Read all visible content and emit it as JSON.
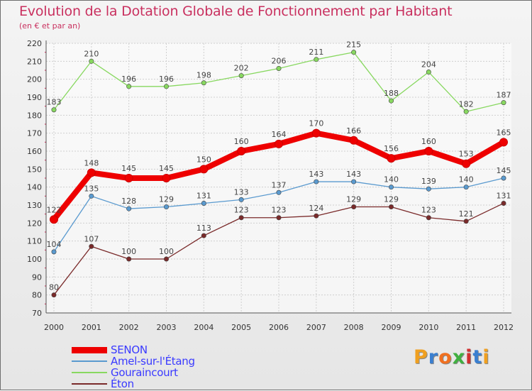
{
  "title": "Evolution de la Dotation Globale de Fonctionnement par Habitant",
  "subtitle": "(en € et par an)",
  "chart_data": {
    "type": "line",
    "title": "Evolution de la Dotation Globale de Fonctionnement par Habitant",
    "subtitle": "(en € et par an)",
    "xlabel": "",
    "ylabel": "",
    "ylim": [
      70,
      220
    ],
    "yticks": [
      70,
      80,
      90,
      100,
      110,
      120,
      130,
      140,
      150,
      160,
      170,
      180,
      190,
      200,
      210,
      220
    ],
    "grid": true,
    "legend_position": "bottom-left",
    "categories": [
      "2000",
      "2001",
      "2002",
      "2003",
      "2004",
      "2005",
      "2006",
      "2007",
      "2008",
      "2009",
      "2010",
      "2011",
      "2012"
    ],
    "series": [
      {
        "name": "Gouraincourt",
        "color": "#88d860",
        "values": [
          183,
          210,
          196,
          196,
          198,
          202,
          206,
          211,
          215,
          188,
          204,
          182,
          187
        ]
      },
      {
        "name": "Amel-sur-l'Étang",
        "color": "#5a9acf",
        "values": [
          104,
          135,
          128,
          129,
          131,
          133,
          137,
          143,
          143,
          140,
          139,
          140,
          145
        ]
      },
      {
        "name": "Éton",
        "color": "#7a2a2a",
        "values": [
          80,
          107,
          100,
          100,
          113,
          123,
          123,
          124,
          129,
          129,
          123,
          121,
          131
        ]
      },
      {
        "name": "SENON",
        "color": "#ee0000",
        "values": [
          122,
          148,
          145,
          145,
          150,
          160,
          164,
          170,
          166,
          156,
          160,
          153,
          165
        ]
      }
    ]
  },
  "legend": [
    {
      "label": "SENON",
      "color": "#ee0000"
    },
    {
      "label": "Amel-sur-l'Étang",
      "color": "#5a9acf"
    },
    {
      "label": "Gouraincourt",
      "color": "#88d860"
    },
    {
      "label": "Éton",
      "color": "#7a2a2a"
    }
  ],
  "logo": {
    "text": "Proxiti",
    "colors": [
      "#f0a020",
      "#3a7fd0",
      "#f07020",
      "#40b040",
      "#d03030",
      "#3a7fd0",
      "#f0a020"
    ]
  }
}
